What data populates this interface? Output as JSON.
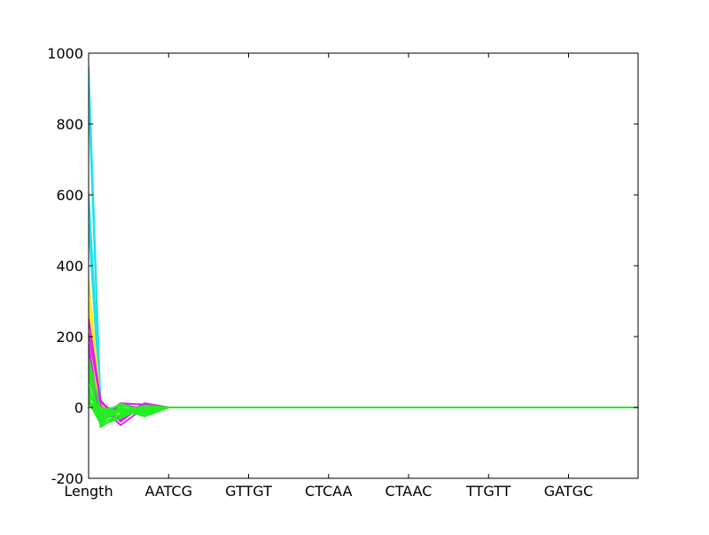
{
  "chart_data": {
    "type": "line",
    "chart_subtype": "parallel-coordinates",
    "title": "",
    "xlabel": "",
    "ylabel": "",
    "grid": false,
    "legend": "none",
    "ylim": [
      -200,
      1000
    ],
    "y_ticks": [
      -200,
      0,
      200,
      400,
      600,
      800,
      1000
    ],
    "x_max": 6.87,
    "categories": [
      "Length",
      "AATCG",
      "GTTGT",
      "CTCAA",
      "CTAAC",
      "TTGTT",
      "GATGC"
    ],
    "colors": {
      "cyan": "#22e0ee",
      "yellow": "#ffee11",
      "magenta": "#dd22ee",
      "green": "#22ee22"
    },
    "series": [
      {
        "color": "cyan",
        "x": [
          0,
          0.15,
          0.4,
          0.7,
          1,
          6.87
        ],
        "values": [
          960,
          0,
          -8,
          4,
          0,
          0
        ]
      },
      {
        "color": "cyan",
        "x": [
          0,
          0.15,
          0.4,
          0.7,
          1,
          6.87
        ],
        "values": [
          880,
          5,
          -12,
          6,
          0,
          0
        ]
      },
      {
        "color": "cyan",
        "x": [
          0,
          0.15,
          0.4,
          0.7,
          1,
          6.87
        ],
        "values": [
          600,
          10,
          -15,
          8,
          0,
          0
        ]
      },
      {
        "color": "cyan",
        "x": [
          0,
          0.15,
          0.4,
          0.7,
          1,
          6.87
        ],
        "values": [
          520,
          -5,
          -10,
          2,
          0,
          0
        ]
      },
      {
        "color": "yellow",
        "x": [
          0,
          0.15,
          0.4,
          0.7,
          1,
          6.87
        ],
        "values": [
          360,
          10,
          -20,
          5,
          0,
          0
        ]
      },
      {
        "color": "yellow",
        "x": [
          0,
          0.15,
          0.4,
          0.7,
          1,
          6.87
        ],
        "values": [
          300,
          0,
          -25,
          10,
          0,
          0
        ]
      },
      {
        "color": "yellow",
        "x": [
          0,
          0.15,
          0.4,
          0.7,
          1,
          6.87
        ],
        "values": [
          260,
          5,
          -15,
          0,
          0,
          0
        ]
      },
      {
        "color": "yellow",
        "x": [
          0,
          0.15,
          0.4,
          0.7,
          1,
          6.87
        ],
        "values": [
          220,
          -10,
          -30,
          5,
          0,
          0
        ]
      },
      {
        "color": "magenta",
        "x": [
          0,
          0.15,
          0.4,
          0.7,
          1,
          6.87
        ],
        "values": [
          250,
          20,
          -40,
          10,
          0,
          0
        ]
      },
      {
        "color": "magenta",
        "x": [
          0,
          0.15,
          0.4,
          0.7,
          1,
          6.87
        ],
        "values": [
          210,
          15,
          -35,
          5,
          0,
          0
        ]
      },
      {
        "color": "magenta",
        "x": [
          0,
          0.15,
          0.4,
          0.7,
          1,
          6.87
        ],
        "values": [
          180,
          -45,
          10,
          -5,
          0,
          0
        ]
      },
      {
        "color": "magenta",
        "x": [
          0,
          0.15,
          0.4,
          0.7,
          1,
          6.87
        ],
        "values": [
          150,
          -30,
          12,
          8,
          0,
          0
        ]
      },
      {
        "color": "magenta",
        "x": [
          0,
          0.15,
          0.4,
          0.7,
          1,
          6.87
        ],
        "values": [
          120,
          5,
          -50,
          0,
          0,
          0
        ]
      },
      {
        "color": "magenta",
        "x": [
          0,
          0.15,
          0.4,
          0.7,
          1,
          6.87
        ],
        "values": [
          90,
          -20,
          -25,
          12,
          0,
          0
        ]
      },
      {
        "color": "green",
        "x": [
          0,
          0.15,
          0.4,
          0.7,
          1,
          6.87
        ],
        "values": [
          140,
          -10,
          5,
          -5,
          0,
          0
        ]
      },
      {
        "color": "green",
        "x": [
          0,
          0.15,
          0.4,
          0.7,
          1,
          6.87
        ],
        "values": [
          120,
          -55,
          -20,
          5,
          0,
          0
        ]
      },
      {
        "color": "green",
        "x": [
          0,
          0.15,
          0.4,
          0.7,
          1,
          6.87
        ],
        "values": [
          100,
          -40,
          -10,
          -20,
          0,
          0
        ]
      },
      {
        "color": "green",
        "x": [
          0,
          0.15,
          0.4,
          0.7,
          1,
          6.87
        ],
        "values": [
          80,
          -30,
          0,
          -15,
          0,
          0
        ]
      },
      {
        "color": "green",
        "x": [
          0,
          0.15,
          0.4,
          0.7,
          1,
          6.87
        ],
        "values": [
          60,
          -50,
          -30,
          0,
          0,
          0
        ]
      },
      {
        "color": "green",
        "x": [
          0,
          0.15,
          0.4,
          0.7,
          1,
          6.87
        ],
        "values": [
          50,
          -20,
          10,
          -10,
          0,
          0
        ]
      },
      {
        "color": "green",
        "x": [
          0,
          0.15,
          0.4,
          0.7,
          1,
          6.87
        ],
        "values": [
          40,
          -10,
          -25,
          -5,
          0,
          0
        ]
      },
      {
        "color": "green",
        "x": [
          0,
          0.15,
          0.4,
          0.7,
          1,
          6.87
        ],
        "values": [
          30,
          0,
          -15,
          5,
          0,
          0
        ]
      },
      {
        "color": "green",
        "x": [
          0,
          0.15,
          0.4,
          0.7,
          1,
          6.87
        ],
        "values": [
          25,
          -35,
          -5,
          -25,
          0,
          0
        ]
      },
      {
        "color": "green",
        "x": [
          0,
          0.15,
          0.4,
          0.7,
          1,
          6.87
        ],
        "values": [
          20,
          -15,
          -10,
          0,
          0,
          0
        ]
      },
      {
        "color": "green",
        "x": [
          0,
          0.15,
          0.4,
          0.7,
          1,
          6.87
        ],
        "values": [
          15,
          -45,
          -20,
          -10,
          0,
          0
        ]
      },
      {
        "color": "green",
        "x": [
          0,
          0.15,
          0.4,
          0.7,
          1,
          6.87
        ],
        "values": [
          10,
          -25,
          -5,
          -15,
          0,
          0
        ]
      }
    ]
  }
}
